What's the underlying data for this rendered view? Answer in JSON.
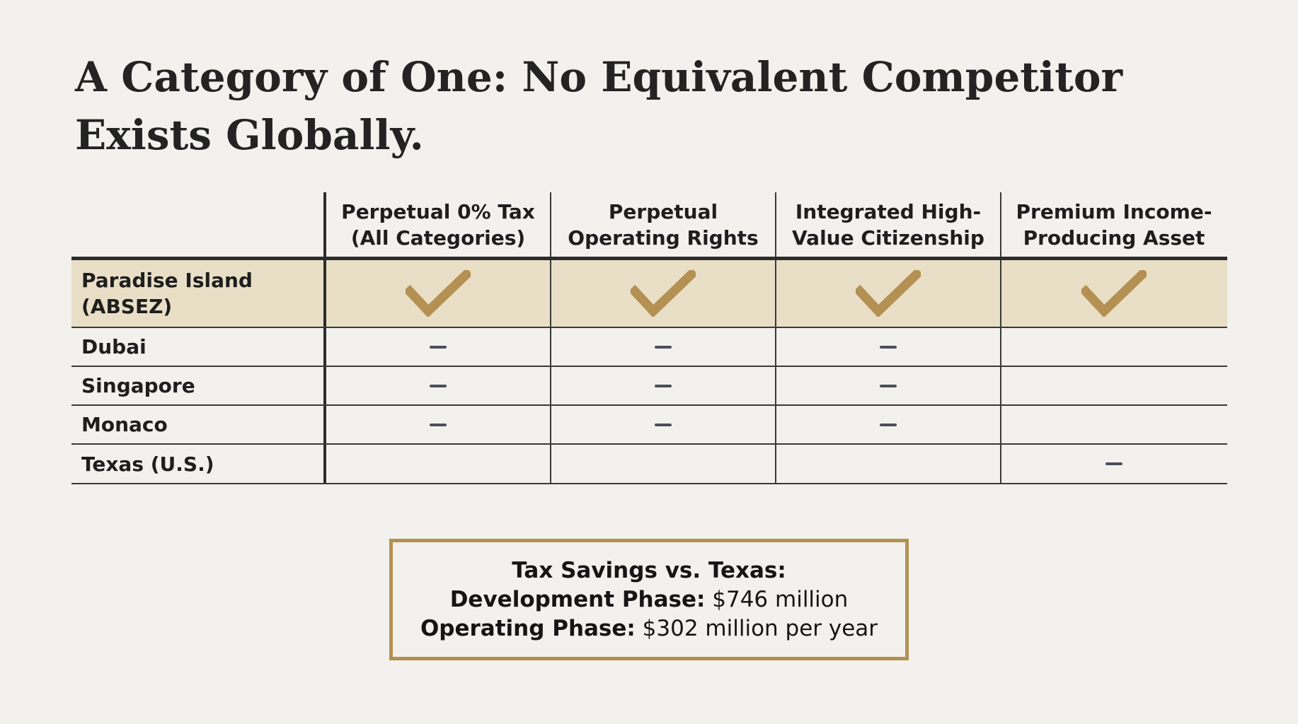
{
  "title": "A Category of One: No Equivalent Competitor Exists Globally.",
  "accent_color": "#b49052",
  "highlight_color": "#e9dfc6",
  "table": {
    "columns": [
      "Perpetual 0% Tax\n(All Categories)",
      "Perpetual\nOperating Rights",
      "Integrated High-\nValue Citizenship",
      "Premium Income-\nProducing Asset"
    ],
    "rows": [
      {
        "label": "Paradise Island\n(ABSEZ)",
        "highlight": true,
        "cells": [
          "check-icon",
          "check-icon",
          "check-icon",
          "check-icon"
        ]
      },
      {
        "label": "Dubai",
        "highlight": false,
        "cells": [
          "dash-icon",
          "dash-icon",
          "dash-icon",
          ""
        ]
      },
      {
        "label": "Singapore",
        "highlight": false,
        "cells": [
          "dash-icon",
          "dash-icon",
          "dash-icon",
          ""
        ]
      },
      {
        "label": "Monaco",
        "highlight": false,
        "cells": [
          "dash-icon",
          "dash-icon",
          "dash-icon",
          ""
        ]
      },
      {
        "label": "Texas (U.S.)",
        "highlight": false,
        "cells": [
          "",
          "",
          "",
          "dash-icon"
        ]
      }
    ]
  },
  "callout": {
    "heading": "Tax Savings vs. Texas:",
    "lines": [
      {
        "label": "Development Phase:",
        "value": "$746 million"
      },
      {
        "label": "Operating Phase:",
        "value": "$302 million per year"
      }
    ]
  }
}
